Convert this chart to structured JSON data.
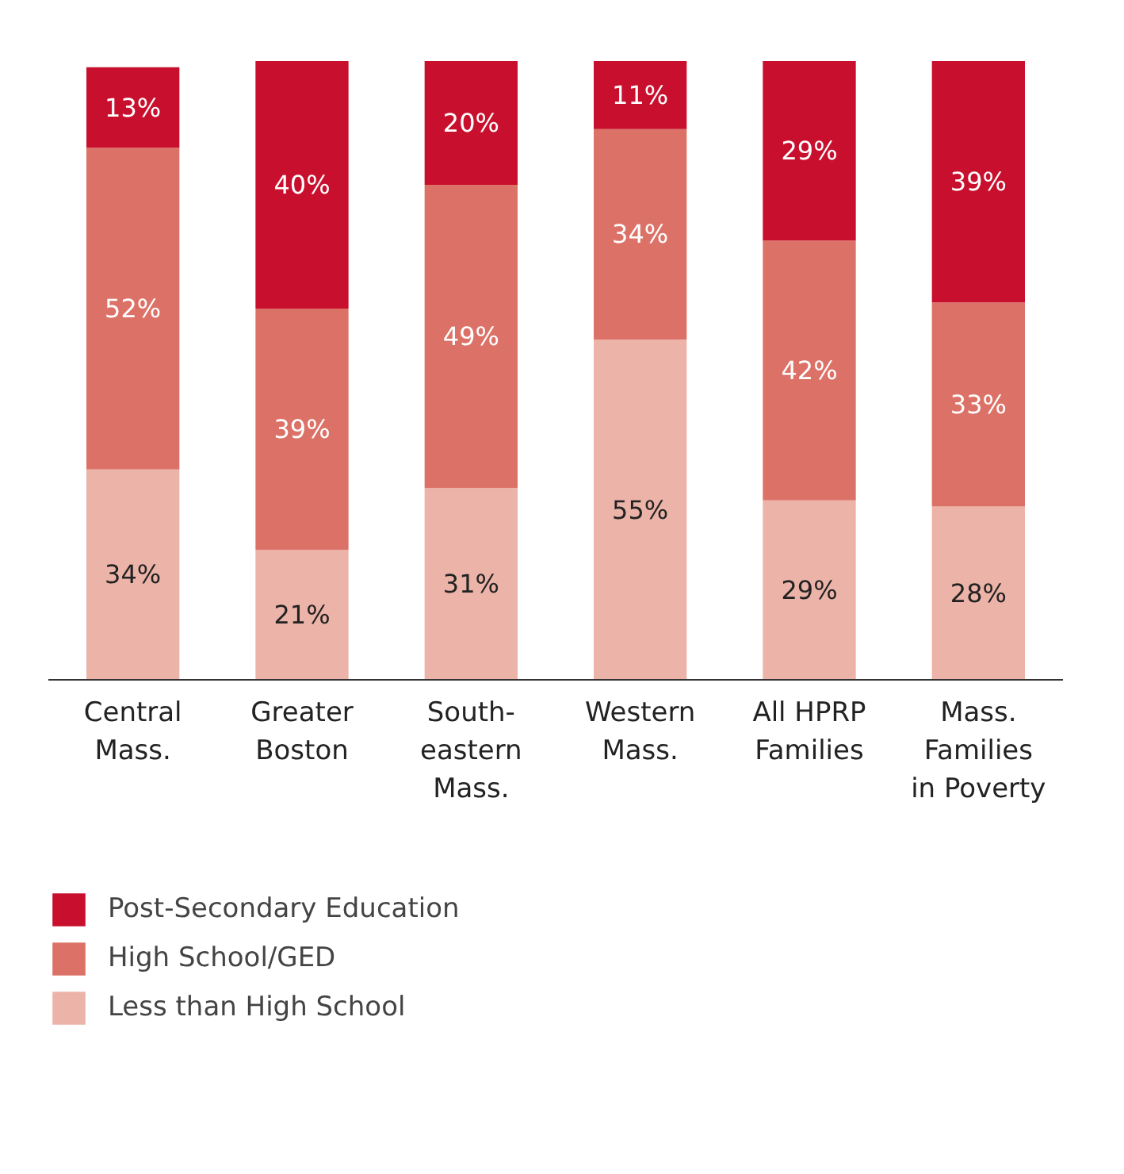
{
  "chart_data": {
    "type": "bar",
    "stacked": true,
    "grid": false,
    "legend": "bottom",
    "tick_labels": "x",
    "categories": [
      "Central\nMass.",
      "Greater\nBoston",
      "South-\neastern\nMass.",
      "Western\nMass.",
      "All HPRP\nFamilies",
      "Mass.\nFamilies\nin Poverty"
    ],
    "series": [
      {
        "name": "Less than High School",
        "color": "#ecb3a8",
        "values": [
          34,
          21,
          31,
          55,
          29,
          28
        ],
        "value_labels": [
          "34%",
          "21%",
          "31%",
          "55%",
          "29%",
          "28%"
        ]
      },
      {
        "name": "High School/GED",
        "color": "#dc7267",
        "values": [
          52,
          39,
          49,
          34,
          42,
          33
        ],
        "value_labels": [
          "52%",
          "39%",
          "49%",
          "34%",
          "42%",
          "33%"
        ]
      },
      {
        "name": "Post-Secondary Education",
        "color": "#c8102e",
        "values": [
          13,
          40,
          20,
          11,
          29,
          39
        ],
        "value_labels": [
          "13%",
          "40%",
          "20%",
          "11%",
          "29%",
          "39%"
        ]
      }
    ]
  }
}
